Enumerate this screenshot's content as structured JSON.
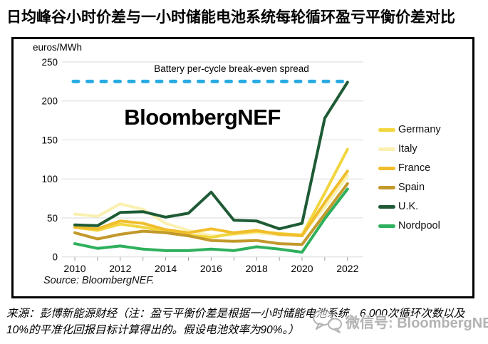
{
  "page": {
    "title": "日均峰谷小时价差与一小时储能电池系统每轮循环盈亏平衡价差对比"
  },
  "chart_data": {
    "type": "line",
    "unit_label": "euros/MWh",
    "x": [
      2010,
      2011,
      2012,
      2013,
      2014,
      2015,
      2016,
      2017,
      2018,
      2019,
      2020,
      2021,
      2022
    ],
    "x_tick_labels": [
      "2010",
      "2012",
      "2014",
      "2016",
      "2018",
      "2020",
      "2022"
    ],
    "y_ticks": [
      0,
      50,
      100,
      150,
      200,
      250
    ],
    "ylim": [
      0,
      250
    ],
    "grid": true,
    "legend_position": "right",
    "break_even_line": {
      "label": "Battery per-cycle break-even spread",
      "value": 225,
      "color": "#29ABE2",
      "style": "dashed"
    },
    "series": [
      {
        "name": "Germany",
        "color": "#F2D63F",
        "values": [
          38,
          34,
          42,
          38,
          33,
          28,
          25,
          30,
          33,
          30,
          28,
          82,
          138
        ]
      },
      {
        "name": "Italy",
        "color": "#FAF0B0",
        "values": [
          55,
          52,
          68,
          61,
          43,
          34,
          27,
          29,
          31,
          28,
          29,
          64,
          104
        ]
      },
      {
        "name": "France",
        "color": "#F0BE2D",
        "values": [
          38,
          36,
          46,
          43,
          35,
          31,
          36,
          31,
          34,
          29,
          27,
          70,
          110
        ]
      },
      {
        "name": "Spain",
        "color": "#C2992B",
        "values": [
          31,
          23,
          29,
          33,
          31,
          27,
          21,
          20,
          21,
          17,
          16,
          55,
          94
        ]
      },
      {
        "name": "U.K.",
        "color": "#1E5B35",
        "values": [
          41,
          40,
          57,
          58,
          51,
          56,
          83,
          47,
          46,
          36,
          43,
          178,
          224
        ]
      },
      {
        "name": "Nordpool",
        "color": "#2EB05C",
        "values": [
          17,
          11,
          14,
          10,
          8,
          8,
          10,
          8,
          13,
          10,
          6,
          49,
          87
        ]
      }
    ],
    "watermark": "BloombergNEF",
    "source": "Source: BloombergNEF."
  },
  "caption": {
    "lines": [
      "来源：彭博新能源财经（注：盈亏平衡价差是根据一小时储能电池系统、6,000次循环次数以及",
      "10%的平准化回报目标计算得出的。假设电池效率为90%。）"
    ]
  },
  "wechat": {
    "label": "微信号: BloombergNEF"
  }
}
